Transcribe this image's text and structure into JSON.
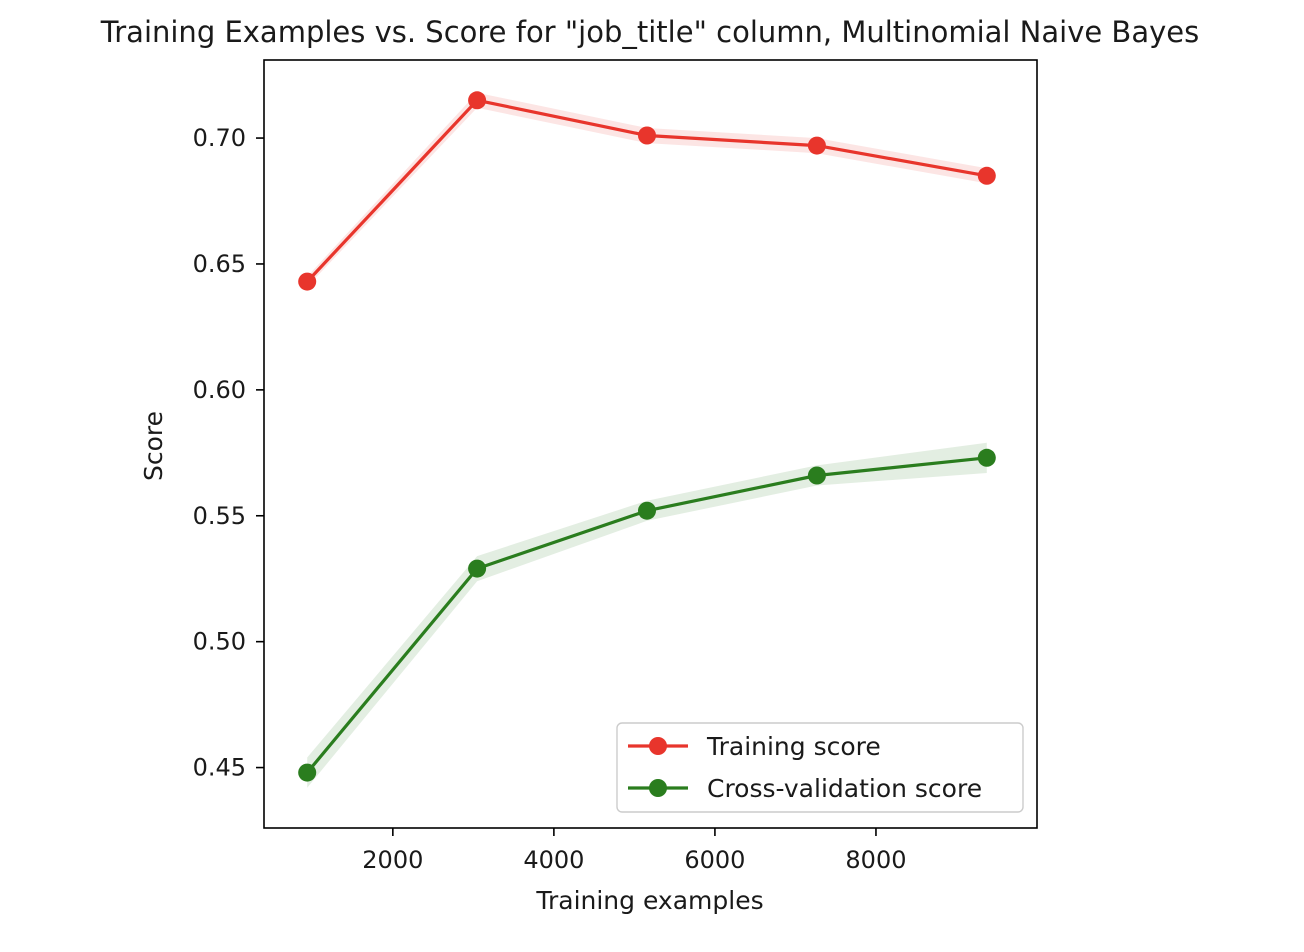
{
  "chart_data": {
    "type": "line",
    "title": "Training Examples vs. Score for \"job_title\" column, Multinomial Naive Bayes",
    "xlabel": "Training examples",
    "ylabel": "Score",
    "xlim": [
      400,
      10000
    ],
    "ylim": [
      0.426,
      0.731
    ],
    "xticks": [
      2000,
      4000,
      6000,
      8000
    ],
    "yticks": [
      0.45,
      0.5,
      0.55,
      0.6,
      0.65,
      0.7
    ],
    "grid": false,
    "legend_position": "lower right",
    "x": [
      937,
      3047,
      5157,
      7267,
      9377
    ],
    "series": [
      {
        "name": "Training score",
        "color": "#e8352c",
        "marker": "circle",
        "values": [
          0.643,
          0.715,
          0.701,
          0.697,
          0.685
        ],
        "band": [
          0.002,
          0.003,
          0.003,
          0.003,
          0.003
        ]
      },
      {
        "name": "Cross-validation score",
        "color": "#2a7d1e",
        "marker": "circle",
        "values": [
          0.448,
          0.529,
          0.552,
          0.566,
          0.573
        ],
        "band": [
          0.006,
          0.005,
          0.004,
          0.004,
          0.006
        ]
      }
    ]
  }
}
